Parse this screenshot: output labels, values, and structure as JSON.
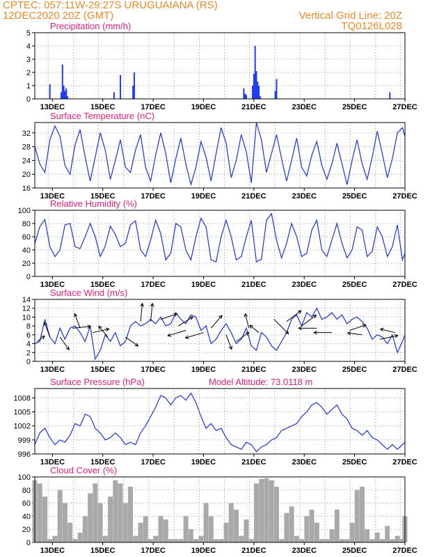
{
  "header": {
    "line1_left": "CPTEC:   057:11W-29:27S   URUGUAIANA (RS)",
    "line2_left": "12DEC2020 20Z (GMT)",
    "line1_right": "Vertical Grid Line: 20Z",
    "line2_right": "TQ0126L028"
  },
  "colors": {
    "line": "#2a3fd6",
    "bar": "#1f3cf0",
    "cloud": "#a9a9a9",
    "title": "#e0207a",
    "header": "#e8892a"
  },
  "chart_data": [
    {
      "type": "bar",
      "title": "Precipitation (mm/h)",
      "ylim": [
        0,
        5
      ],
      "yticks": [
        0,
        1,
        2,
        3,
        4,
        5
      ],
      "x_days": [
        12.9,
        13.35,
        13.4,
        13.45,
        13.5,
        13.55,
        13.6,
        15.45,
        15.7,
        16.2,
        16.25,
        20.6,
        20.65,
        20.7,
        20.95,
        21.0,
        21.05,
        21.1,
        21.15,
        21.2,
        21.25,
        21.85,
        21.9,
        26.4
      ],
      "values": [
        1.1,
        0.5,
        2.6,
        1.0,
        0.6,
        0.8,
        0.2,
        0.5,
        1.8,
        1.0,
        2.0,
        0.8,
        0.4,
        0.3,
        1.0,
        1.9,
        4.0,
        2.1,
        1.3,
        1.0,
        0.2,
        0.6,
        1.5,
        0.5
      ],
      "xlim": [
        12.3,
        27.0
      ]
    },
    {
      "type": "line",
      "title": "Surface Temperature (nC)",
      "ylim": [
        16,
        35
      ],
      "yticks": [
        16,
        20,
        24,
        28,
        32
      ],
      "x_days": [
        12.3,
        12.5,
        12.7,
        12.9,
        13.1,
        13.3,
        13.5,
        13.7,
        13.9,
        14.1,
        14.3,
        14.5,
        14.7,
        14.9,
        15.1,
        15.3,
        15.5,
        15.7,
        15.9,
        16.1,
        16.3,
        16.5,
        16.7,
        16.9,
        17.1,
        17.3,
        17.5,
        17.7,
        17.9,
        18.1,
        18.3,
        18.5,
        18.7,
        18.9,
        19.1,
        19.3,
        19.5,
        19.7,
        19.9,
        20.1,
        20.3,
        20.5,
        20.7,
        20.9,
        21.1,
        21.3,
        21.5,
        21.7,
        21.9,
        22.1,
        22.3,
        22.5,
        22.7,
        22.9,
        23.1,
        23.3,
        23.5,
        23.7,
        23.9,
        24.1,
        24.3,
        24.5,
        24.7,
        24.9,
        25.1,
        25.3,
        25.5,
        25.7,
        25.9,
        26.1,
        26.3,
        26.5,
        26.7,
        26.9,
        27.0
      ],
      "values": [
        28.0,
        23.0,
        20.5,
        30.0,
        34.0,
        31.0,
        22.5,
        20.0,
        28.5,
        33.0,
        25.0,
        18.0,
        25.0,
        32.0,
        27.0,
        18.5,
        24.0,
        30.0,
        22.0,
        20.5,
        27.0,
        31.5,
        22.0,
        18.0,
        25.5,
        32.0,
        26.0,
        17.5,
        24.5,
        30.5,
        23.0,
        17.0,
        22.0,
        29.5,
        25.0,
        18.0,
        26.0,
        33.5,
        29.0,
        19.0,
        24.0,
        31.5,
        26.5,
        17.5,
        35.0,
        30.0,
        20.5,
        26.0,
        31.5,
        24.5,
        18.0,
        24.0,
        30.5,
        22.0,
        19.5,
        25.5,
        29.5,
        22.5,
        18.5,
        23.0,
        29.0,
        23.0,
        17.0,
        24.0,
        30.0,
        23.0,
        18.5,
        25.0,
        32.5,
        26.0,
        19.0,
        24.5,
        32.0,
        33.5,
        31.0
      ],
      "xlim": [
        12.3,
        27.0
      ]
    },
    {
      "type": "line",
      "title": "Relative Humidity (%)",
      "ylim": [
        0,
        100
      ],
      "yticks": [
        0,
        20,
        40,
        60,
        80,
        100
      ],
      "x_days": [
        12.3,
        12.5,
        12.7,
        12.9,
        13.1,
        13.3,
        13.5,
        13.7,
        13.9,
        14.1,
        14.3,
        14.5,
        14.7,
        14.9,
        15.1,
        15.3,
        15.5,
        15.7,
        15.9,
        16.1,
        16.3,
        16.5,
        16.7,
        16.9,
        17.1,
        17.3,
        17.5,
        17.7,
        17.9,
        18.1,
        18.3,
        18.5,
        18.7,
        18.9,
        19.1,
        19.3,
        19.5,
        19.7,
        19.9,
        20.1,
        20.3,
        20.5,
        20.7,
        20.9,
        21.1,
        21.3,
        21.5,
        21.7,
        21.9,
        22.1,
        22.3,
        22.5,
        22.7,
        22.9,
        23.1,
        23.3,
        23.5,
        23.7,
        23.9,
        24.1,
        24.3,
        24.5,
        24.7,
        24.9,
        25.1,
        25.3,
        25.5,
        25.7,
        25.9,
        26.1,
        26.3,
        26.5,
        26.7,
        26.9,
        27.0
      ],
      "values": [
        50.0,
        75.0,
        86.0,
        45.0,
        30.0,
        40.0,
        78.0,
        80.0,
        45.0,
        42.0,
        60.0,
        80.0,
        60.0,
        30.0,
        46.0,
        76.0,
        63.0,
        45.0,
        50.0,
        78.0,
        84.0,
        40.0,
        30.0,
        55.0,
        85.0,
        65.0,
        25.0,
        35.0,
        80.0,
        75.0,
        40.0,
        25.0,
        60.0,
        88.0,
        75.0,
        25.0,
        22.0,
        60.0,
        85.0,
        60.0,
        25.0,
        30.0,
        60.0,
        85.0,
        22.0,
        26.0,
        85.0,
        95.0,
        55.0,
        28.0,
        50.0,
        80.0,
        60.0,
        30.0,
        35.0,
        70.0,
        85.0,
        40.0,
        30.0,
        55.0,
        80.0,
        50.0,
        28.0,
        40.0,
        75.0,
        70.0,
        30.0,
        38.0,
        75.0,
        60.0,
        30.0,
        45.0,
        78.0,
        25.0,
        35.0
      ],
      "xlim": [
        12.3,
        27.0
      ]
    },
    {
      "type": "line",
      "title": "Surface Wind (m/s)",
      "ylim": [
        0,
        14
      ],
      "yticks": [
        0,
        2,
        4,
        6,
        8,
        10,
        12,
        14
      ],
      "x_days": [
        12.3,
        12.5,
        12.7,
        12.9,
        13.1,
        13.3,
        13.5,
        13.7,
        13.9,
        14.1,
        14.3,
        14.5,
        14.7,
        14.9,
        15.1,
        15.3,
        15.5,
        15.7,
        15.9,
        16.1,
        16.3,
        16.5,
        16.7,
        16.9,
        17.1,
        17.3,
        17.5,
        17.7,
        17.9,
        18.1,
        18.3,
        18.5,
        18.7,
        18.9,
        19.1,
        19.3,
        19.5,
        19.7,
        19.9,
        20.1,
        20.3,
        20.5,
        20.7,
        20.9,
        21.1,
        21.3,
        21.5,
        21.7,
        21.9,
        22.1,
        22.3,
        22.5,
        22.7,
        22.9,
        23.1,
        23.3,
        23.5,
        23.7,
        23.9,
        24.1,
        24.3,
        24.5,
        24.7,
        24.9,
        25.1,
        25.3,
        25.5,
        25.7,
        25.9,
        26.1,
        26.3,
        26.5,
        26.7,
        26.9,
        27.0
      ],
      "values": [
        4.0,
        4.5,
        9.5,
        5.5,
        4.0,
        7.5,
        5.0,
        7.5,
        8.0,
        6.5,
        4.5,
        8.0,
        0.5,
        2.5,
        6.0,
        4.5,
        6.5,
        3.5,
        4.5,
        8.0,
        9.0,
        8.0,
        8.5,
        9.5,
        8.5,
        10.0,
        8.0,
        8.5,
        11.0,
        9.5,
        8.5,
        10.5,
        10.0,
        7.0,
        8.0,
        4.0,
        5.0,
        7.0,
        8.5,
        6.5,
        4.0,
        5.0,
        7.5,
        3.5,
        2.5,
        6.5,
        5.5,
        3.5,
        2.5,
        4.5,
        6.5,
        9.5,
        10.5,
        8.0,
        11.0,
        10.0,
        12.0,
        9.5,
        10.0,
        11.0,
        9.5,
        10.5,
        8.5,
        9.5,
        10.0,
        9.0,
        7.5,
        5.0,
        6.0,
        5.5,
        4.0,
        6.0,
        2.0,
        4.5,
        6.0
      ],
      "xlim": [
        12.3,
        27.0
      ]
    },
    {
      "type": "line",
      "title": "Surface Pressure (hPa)",
      "ylim": [
        996,
        1010
      ],
      "yticks": [
        996,
        999,
        1002,
        1005,
        1008
      ],
      "x_days": [
        12.3,
        12.5,
        12.7,
        12.9,
        13.1,
        13.3,
        13.5,
        13.7,
        13.9,
        14.1,
        14.3,
        14.5,
        14.7,
        14.9,
        15.1,
        15.3,
        15.5,
        15.7,
        15.9,
        16.1,
        16.3,
        16.5,
        16.7,
        16.9,
        17.1,
        17.3,
        17.5,
        17.7,
        17.9,
        18.1,
        18.3,
        18.5,
        18.7,
        18.9,
        19.1,
        19.3,
        19.5,
        19.7,
        19.9,
        20.1,
        20.3,
        20.5,
        20.7,
        20.9,
        21.1,
        21.3,
        21.5,
        21.7,
        21.9,
        22.1,
        22.3,
        22.5,
        22.7,
        22.9,
        23.1,
        23.3,
        23.5,
        23.7,
        23.9,
        24.1,
        24.3,
        24.5,
        24.7,
        24.9,
        25.1,
        25.3,
        25.5,
        25.7,
        25.9,
        26.1,
        26.3,
        26.5,
        26.7,
        26.9,
        27.0
      ],
      "values": [
        998.0,
        1000.5,
        1001.5,
        999.5,
        998.0,
        999.0,
        998.5,
        1000.0,
        1002.5,
        1002.0,
        1004.5,
        1004.0,
        1001.5,
        1000.5,
        999.0,
        999.5,
        1000.5,
        999.5,
        998.0,
        998.5,
        998.0,
        1000.5,
        1002.0,
        1004.0,
        1006.0,
        1008.5,
        1008.0,
        1006.5,
        1008.0,
        1008.5,
        1007.5,
        1009.0,
        1007.0,
        1004.0,
        1001.5,
        1002.5,
        1001.0,
        1001.5,
        999.5,
        998.0,
        997.5,
        997.0,
        998.5,
        998.0,
        996.5,
        997.5,
        998.0,
        999.0,
        999.5,
        1001.0,
        1001.5,
        1002.0,
        1002.5,
        1004.0,
        1005.0,
        1006.5,
        1007.0,
        1006.0,
        1004.5,
        1005.5,
        1006.5,
        1004.5,
        1003.5,
        1001.5,
        1001.0,
        1000.0,
        1001.0,
        999.5,
        999.0,
        998.0,
        997.0,
        998.0,
        997.0,
        998.0,
        998.5
      ],
      "xlim": [
        12.3,
        27.0
      ],
      "annotation": "Model Altitude: 73.0118 m"
    },
    {
      "type": "bar",
      "title": "Cloud Cover (%)",
      "ylim": [
        0,
        100
      ],
      "yticks": [
        0,
        20,
        40,
        60,
        80,
        100
      ],
      "x_days": [
        12.3,
        12.5,
        12.7,
        12.9,
        13.1,
        13.3,
        13.5,
        13.7,
        13.9,
        14.1,
        14.3,
        14.5,
        14.7,
        14.9,
        15.1,
        15.3,
        15.5,
        15.7,
        15.9,
        16.1,
        16.3,
        16.5,
        16.7,
        16.9,
        17.1,
        17.3,
        17.5,
        17.7,
        17.9,
        18.1,
        18.3,
        18.5,
        18.7,
        18.9,
        19.1,
        19.3,
        19.5,
        19.7,
        19.9,
        20.1,
        20.3,
        20.5,
        20.7,
        20.9,
        21.1,
        21.3,
        21.5,
        21.7,
        21.9,
        22.1,
        22.3,
        22.5,
        22.7,
        22.9,
        23.1,
        23.3,
        23.5,
        23.7,
        23.9,
        24.1,
        24.3,
        24.5,
        24.7,
        24.9,
        25.1,
        25.3,
        25.5,
        25.7,
        25.9,
        26.1,
        26.3,
        26.5,
        26.7,
        26.9,
        27.0
      ],
      "values": [
        95.0,
        90.0,
        70.0,
        5.0,
        10.0,
        80.0,
        60.0,
        30.0,
        5.0,
        15.0,
        40.0,
        75.0,
        90.0,
        60.0,
        10.0,
        70.0,
        95.0,
        90.0,
        60.0,
        85.0,
        10.0,
        30.0,
        40.0,
        5.0,
        10.0,
        40.0,
        35.0,
        5.0,
        5.0,
        5.0,
        40.0,
        20.0,
        5.0,
        10.0,
        60.0,
        40.0,
        5.0,
        5.0,
        30.0,
        60.0,
        50.0,
        10.0,
        35.0,
        5.0,
        90.0,
        97.0,
        98.0,
        95.0,
        85.0,
        5.0,
        45.0,
        55.0,
        10.0,
        5.0,
        40.0,
        50.0,
        30.0,
        5.0,
        5.0,
        20.0,
        50.0,
        5.0,
        5.0,
        30.0,
        80.0,
        85.0,
        20.0,
        5.0,
        15.0,
        5.0,
        25.0,
        5.0,
        10.0,
        5.0,
        40.0
      ],
      "xlim": [
        12.3,
        27.0
      ]
    }
  ],
  "x_axis": {
    "tick_days": [
      13,
      15,
      17,
      19,
      21,
      23,
      25,
      27
    ],
    "tick_labels": [
      "13DEC",
      "15DEC",
      "17DEC",
      "19DEC",
      "21DEC",
      "23DEC",
      "25DEC",
      "27DEC"
    ],
    "grid_days": [
      12.83,
      13.83,
      14.83,
      15.83,
      16.83,
      17.83,
      18.83,
      19.83,
      20.83,
      21.83,
      22.83,
      23.83,
      24.83,
      25.83,
      26.83
    ]
  },
  "wind_vectors": [
    {
      "x": 12.4,
      "y": 4.5,
      "u": 0.4,
      "v": 0.3
    },
    {
      "x": 12.9,
      "y": 5.5,
      "u": -0.3,
      "v": 0.8
    },
    {
      "x": 13.3,
      "y": 5.5,
      "u": 0.5,
      "v": -0.7
    },
    {
      "x": 13.8,
      "y": 7.5,
      "u": 1.0,
      "v": 0.1
    },
    {
      "x": 14.1,
      "y": 7.5,
      "u": -0.3,
      "v": 0.8
    },
    {
      "x": 14.6,
      "y": 6.5,
      "u": 0.9,
      "v": 0.2
    },
    {
      "x": 15.2,
      "y": 5.5,
      "u": -0.5,
      "v": 0.6
    },
    {
      "x": 15.9,
      "y": 5.5,
      "u": 0.7,
      "v": -0.5
    },
    {
      "x": 16.5,
      "y": 9.0,
      "u": 0.1,
      "v": 1.0
    },
    {
      "x": 16.9,
      "y": 9.0,
      "u": 0.1,
      "v": 1.0
    },
    {
      "x": 17.3,
      "y": 9.5,
      "u": 0.9,
      "v": 0.3
    },
    {
      "x": 18.0,
      "y": 8.0,
      "u": 0.8,
      "v": 0.5
    },
    {
      "x": 18.3,
      "y": 7.0,
      "u": -1.0,
      "v": -0.3
    },
    {
      "x": 19.0,
      "y": 6.5,
      "u": -1.0,
      "v": -0.3
    },
    {
      "x": 19.3,
      "y": 7.5,
      "u": 0.6,
      "v": 0.7
    },
    {
      "x": 19.9,
      "y": 6.0,
      "u": 0.3,
      "v": -0.8
    },
    {
      "x": 20.3,
      "y": 4.5,
      "u": 0.7,
      "v": 0.5
    },
    {
      "x": 20.8,
      "y": 7.5,
      "u": -0.2,
      "v": 0.8
    },
    {
      "x": 21.2,
      "y": 6.5,
      "u": -0.5,
      "v": 0.4
    },
    {
      "x": 21.8,
      "y": 9.5,
      "u": 0.8,
      "v": -0.8
    },
    {
      "x": 22.3,
      "y": 9.0,
      "u": 0.8,
      "v": 0.6
    },
    {
      "x": 22.9,
      "y": 8.0,
      "u": 0.8,
      "v": 0.6
    },
    {
      "x": 23.5,
      "y": 7.5,
      "u": -1.0,
      "v": 0.0
    },
    {
      "x": 24.1,
      "y": 6.5,
      "u": -1.0,
      "v": 0.0
    },
    {
      "x": 24.8,
      "y": 7.0,
      "u": 0.9,
      "v": 0.3
    },
    {
      "x": 25.3,
      "y": 6.0,
      "u": -0.8,
      "v": 0.1
    },
    {
      "x": 26.0,
      "y": 5.0,
      "u": 1.0,
      "v": 0.2
    },
    {
      "x": 26.6,
      "y": 6.5,
      "u": -0.8,
      "v": 0.2
    }
  ]
}
